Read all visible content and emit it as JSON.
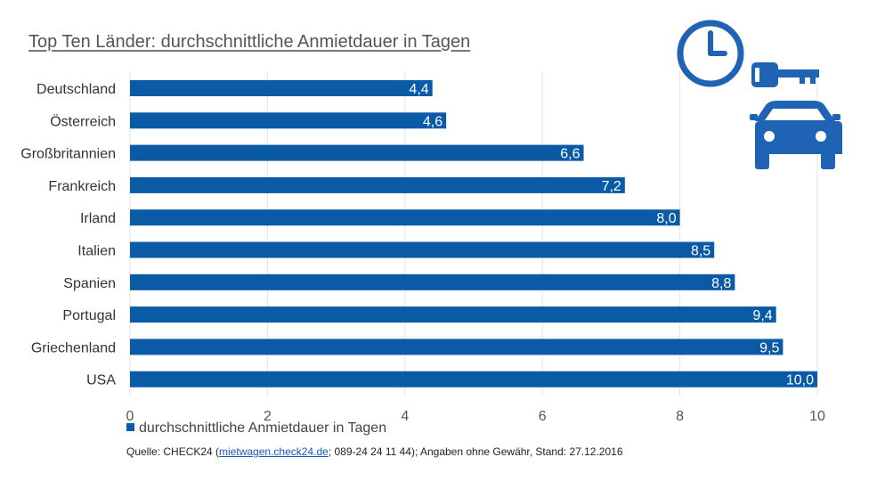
{
  "chart_data": {
    "type": "bar",
    "orientation": "horizontal",
    "title": "Top Ten Länder: durchschnittliche Anmietdauer in Tagen",
    "categories": [
      "Deutschland",
      "Österreich",
      "Großbritannien",
      "Frankreich",
      "Irland",
      "Italien",
      "Spanien",
      "Portugal",
      "Griechenland",
      "USA"
    ],
    "values": [
      4.4,
      4.6,
      6.6,
      7.2,
      8.0,
      8.5,
      8.8,
      9.4,
      9.5,
      10.0
    ],
    "value_labels": [
      "4,4",
      "4,6",
      "6,6",
      "7,2",
      "8,0",
      "8,5",
      "8,8",
      "9,4",
      "9,5",
      "10,0"
    ],
    "series_name": "durchschnittliche Anmietdauer in Tagen",
    "xlim": [
      0,
      10
    ],
    "xticks": [
      0,
      2,
      4,
      6,
      8,
      10
    ],
    "xtick_labels": [
      "0",
      "2",
      "4",
      "6",
      "8",
      "10"
    ],
    "grid": true,
    "legend_position": "bottom-left",
    "color": "#0a5aa5"
  },
  "source": {
    "prefix": "Quelle: CHECK24 (",
    "link": "mietwagen.check24.de",
    "suffix": "; 089-24 24 11 44); Angaben ohne Gewähr, Stand: 27.12.2016"
  },
  "icons": [
    "clock-icon",
    "key-icon",
    "car-icon"
  ],
  "colors": {
    "bar": "#0a5aa5",
    "icon": "#1f63b5",
    "grid": "#e3e3e3"
  }
}
